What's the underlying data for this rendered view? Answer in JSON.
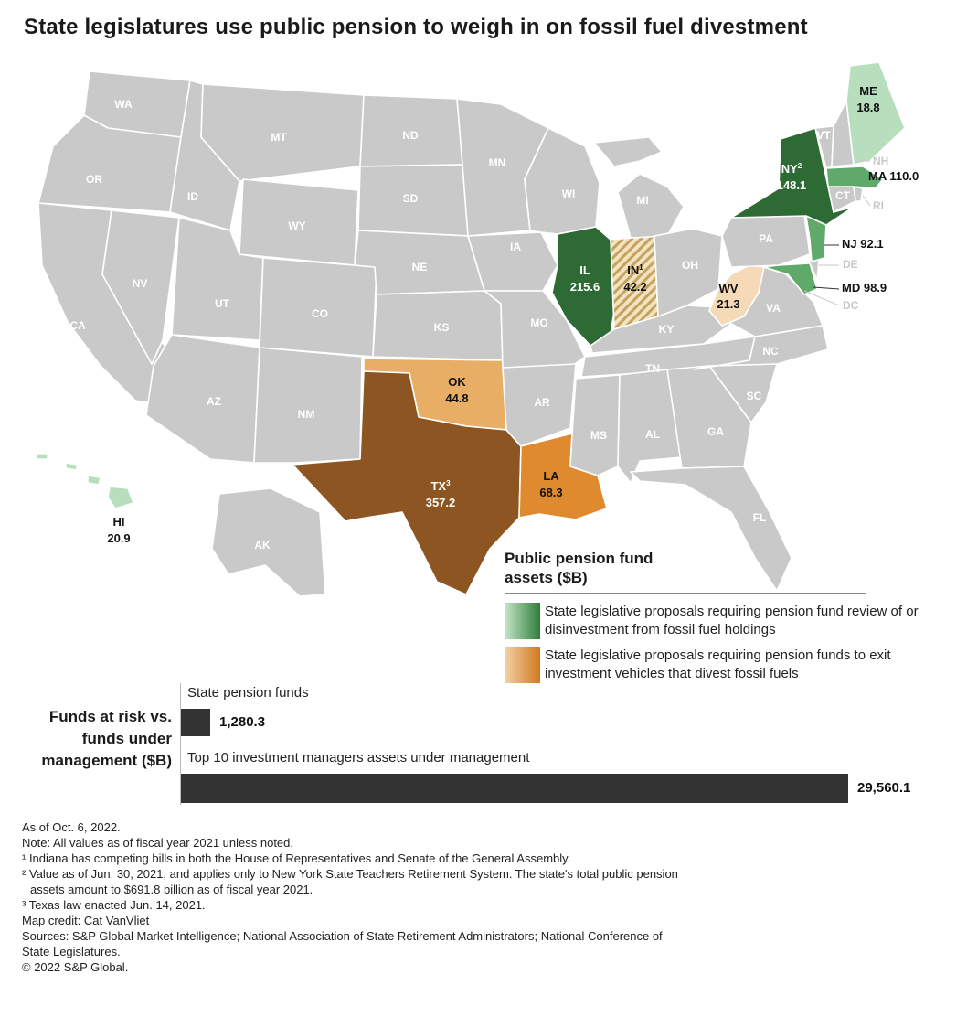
{
  "title": "State legislatures use public pension to weigh in on fossil fuel divestment",
  "map_colors": {
    "default": "#c9c9c9",
    "green_dark": "#2e6b34",
    "green_mid": "#5fa96b",
    "green_light": "#b7dfbe",
    "orange_dark": "#8c5522",
    "orange_mid": "#df8a2e",
    "orange_light": "#e8ae66",
    "peach": "#f6d9b6",
    "hatch": "#d8bc80"
  },
  "map_labels": {
    "WA": "WA",
    "OR": "OR",
    "CA": "CA",
    "NV": "NV",
    "ID": "ID",
    "MT": "MT",
    "WY": "WY",
    "UT": "UT",
    "CO": "CO",
    "AZ": "AZ",
    "NM": "NM",
    "ND": "ND",
    "SD": "SD",
    "NE": "NE",
    "KS": "KS",
    "MN": "MN",
    "IA": "IA",
    "MO": "MO",
    "AR": "AR",
    "MS": "MS",
    "AL": "AL",
    "GA": "GA",
    "FL": "FL",
    "SC": "SC",
    "NC": "NC",
    "TN": "TN",
    "KY": "KY",
    "VA": "VA",
    "OH": "OH",
    "PA": "PA",
    "WI": "WI",
    "MI": "MI",
    "VT": "VT",
    "CT": "CT",
    "AK": "AK",
    "NH": "NH",
    "RI": "RI",
    "DE": "DE",
    "DC": "DC"
  },
  "highlighted_states": [
    {
      "abbr": "ME",
      "value": "18.8",
      "color": "green_light"
    },
    {
      "abbr": "NY",
      "sup": "2",
      "value": "148.1",
      "color": "green_dark"
    },
    {
      "abbr": "MA",
      "value": "110.0",
      "color": "green_mid"
    },
    {
      "abbr": "NJ",
      "value": "92.1",
      "color": "green_mid"
    },
    {
      "abbr": "MD",
      "value": "98.9",
      "color": "green_mid"
    },
    {
      "abbr": "IL",
      "value": "215.6",
      "color": "green_dark"
    },
    {
      "abbr": "IN",
      "sup": "1",
      "value": "42.2",
      "color": "hatch"
    },
    {
      "abbr": "WV",
      "value": "21.3",
      "color": "peach"
    },
    {
      "abbr": "OK",
      "value": "44.8",
      "color": "orange_light"
    },
    {
      "abbr": "TX",
      "sup": "3",
      "value": "357.2",
      "color": "orange_dark"
    },
    {
      "abbr": "LA",
      "value": "68.3",
      "color": "orange_mid"
    },
    {
      "abbr": "HI",
      "value": "20.9",
      "color": "green_light"
    }
  ],
  "legend": {
    "title": "Public pension fund assets ($B)",
    "items": [
      {
        "label": "State legislative proposals requiring pension fund review of or disinvestment from fossil fuel holdings",
        "color": "green"
      },
      {
        "label": "State legislative proposals requiring pension funds to exit investment vehicles that divest fossil fuels",
        "color": "orange"
      }
    ]
  },
  "chart_data": {
    "type": "bar",
    "title": "Funds at risk vs. funds under management ($B)",
    "categories": [
      "State pension funds",
      "Top 10 investment managers assets under management"
    ],
    "values": [
      1280.3,
      29560.1
    ],
    "value_labels": [
      "1,280.3",
      "29,560.1"
    ]
  },
  "notes": [
    "As of Oct. 6, 2022.",
    "Note: All values as of fiscal year 2021 unless noted.",
    "¹ Indiana has competing bills in both the House of Representatives and Senate of the General Assembly.",
    "² Value as of Jun. 30, 2021, and applies only to New York State Teachers Retirement System. The state's total public pension",
    "assets amount to $691.8 billion as of fiscal year 2021.",
    "³ Texas law enacted Jun. 14, 2021.",
    "Map credit: Cat VanVliet",
    "Sources: S&P Global Market Intelligence; National Association of State Retirement Administrators; National Conference of",
    "State Legislatures.",
    "© 2022 S&P Global."
  ]
}
